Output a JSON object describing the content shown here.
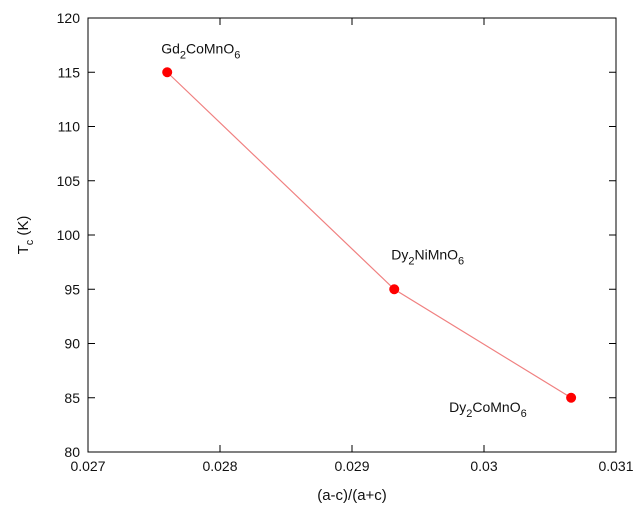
{
  "chart_data": {
    "type": "line",
    "title": "",
    "xlabel": "(a-c)/(a+c)",
    "ylabel": {
      "main": "T",
      "sub": "c",
      "rest": " (K)"
    },
    "xlim": [
      0.027,
      0.031
    ],
    "ylim": [
      80,
      120
    ],
    "x_ticks": [
      0.027,
      0.028,
      0.029,
      0.03,
      0.031
    ],
    "x_tick_labels": [
      "0.027",
      "0.028",
      "0.029",
      "0.03",
      "0.031"
    ],
    "y_ticks": [
      80,
      85,
      90,
      95,
      100,
      105,
      110,
      115,
      120
    ],
    "y_tick_labels": [
      "80",
      "85",
      "90",
      "95",
      "100",
      "105",
      "110",
      "115",
      "120"
    ],
    "grid": false,
    "line_color": "#f08080",
    "marker_color": "#ff0000",
    "series": [
      {
        "x": [
          0.0276,
          0.02932,
          0.03066
        ],
        "y": [
          115,
          95,
          85
        ],
        "labels": [
          [
            {
              "t": "Gd",
              "s": false
            },
            {
              "t": "2",
              "s": true
            },
            {
              "t": "CoMnO",
              "s": false
            },
            {
              "t": "6",
              "s": true
            }
          ],
          [
            {
              "t": "Dy",
              "s": false
            },
            {
              "t": "2",
              "s": true
            },
            {
              "t": "NiMnO",
              "s": false
            },
            {
              "t": "6",
              "s": true
            }
          ],
          [
            {
              "t": "Dy",
              "s": false
            },
            {
              "t": "2",
              "s": true
            },
            {
              "t": "CoMnO",
              "s": false
            },
            {
              "t": "6",
              "s": true
            }
          ]
        ]
      }
    ]
  }
}
